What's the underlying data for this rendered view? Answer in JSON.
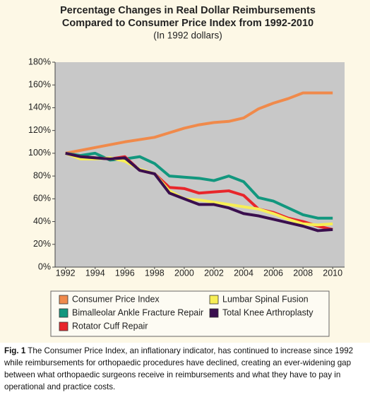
{
  "chart_data": {
    "type": "line",
    "title": [
      "Percentage Changes in Real Dollar Reimbursements",
      "Compared to Consumer Price Index from 1992-2010"
    ],
    "subtitle": "(In 1992 dollars)",
    "x": [
      1992,
      1993,
      1994,
      1995,
      1996,
      1997,
      1998,
      1999,
      2000,
      2001,
      2002,
      2003,
      2004,
      2005,
      2006,
      2007,
      2008,
      2009,
      2010
    ],
    "xlim": [
      1991.3,
      2010.8
    ],
    "xticks": [
      1992,
      1994,
      1996,
      1998,
      2000,
      2002,
      2004,
      2006,
      2008,
      2010
    ],
    "ylim": [
      0,
      180
    ],
    "yticks": [
      {
        "value": 0,
        "label": "0%"
      },
      {
        "value": 20,
        "label": "20%"
      },
      {
        "value": 40,
        "label": "40%"
      },
      {
        "value": 60,
        "label": "60%"
      },
      {
        "value": 80,
        "label": "80%"
      },
      {
        "value": 100,
        "label": "100%"
      },
      {
        "value": 120,
        "label": "120%"
      },
      {
        "value": 140,
        "label": "140%"
      },
      {
        "value": 160,
        "label": "160%"
      },
      {
        "value": 180,
        "label": "180%"
      }
    ],
    "grid": false,
    "series": [
      {
        "name": "Consumer Price Index",
        "color": "#f08a4b",
        "values": [
          100,
          102.5,
          105,
          107.5,
          110,
          112,
          114,
          118,
          122,
          125,
          127,
          128,
          131,
          139,
          144,
          148,
          153,
          153,
          153
        ]
      },
      {
        "name": "Bimalleolar Ankle Fracture Repair",
        "color": "#12977e",
        "values": [
          100,
          98,
          100,
          94,
          95,
          97,
          91,
          80,
          79,
          78,
          76,
          80,
          75,
          61,
          58,
          52,
          46,
          43,
          43
        ]
      },
      {
        "name": "Rotator Cuff Repair",
        "color": "#e8262b",
        "values": [
          100,
          97,
          96,
          95,
          97,
          85,
          82,
          70,
          69,
          65,
          66,
          67,
          63,
          51,
          48,
          43,
          40,
          36,
          33
        ]
      },
      {
        "name": "Lumbar Spinal Fusion",
        "color": "#f7ee55",
        "values": [
          100,
          95,
          95,
          96,
          93,
          86,
          82,
          67,
          60,
          59,
          57,
          55,
          53,
          51,
          47,
          42,
          38,
          37,
          38
        ]
      },
      {
        "name": "Total Knee Arthroplasty",
        "color": "#3a0f4e",
        "values": [
          100,
          97,
          96,
          95,
          96,
          85,
          82,
          65,
          60,
          55,
          55,
          52,
          47,
          45,
          42,
          39,
          36,
          32,
          33
        ]
      }
    ]
  },
  "caption": {
    "label": "Fig. 1",
    "text": "The Consumer Price Index, an inflationary indicator, has continued to increase since 1992 while reimbursements for orthopaedic procedures have declined, creating an ever-widening gap between what orthopaedic surgeons receive in reimbursements and what they have to pay in operational and practice costs."
  }
}
